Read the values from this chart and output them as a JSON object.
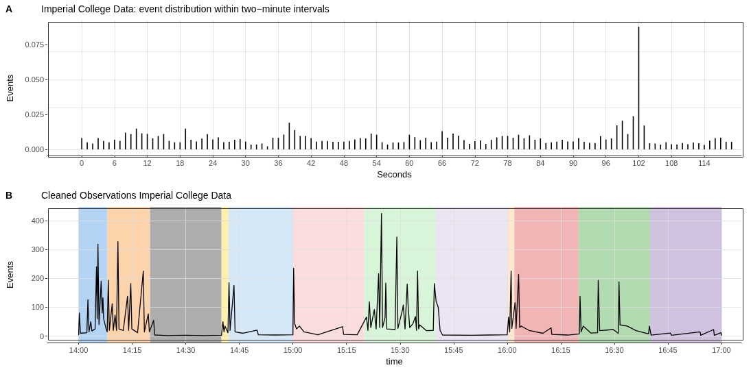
{
  "chart_data": [
    {
      "type": "bar",
      "title": "Imperial College Data: event distribution within two−minute intervals",
      "annotations": [
        "A"
      ],
      "xlabel": "Seconds",
      "ylabel": "Events",
      "grid": true,
      "color": "#000000",
      "x": [
        0,
        1,
        2,
        3,
        4,
        5,
        6,
        7,
        8,
        9,
        10,
        11,
        12,
        13,
        14,
        15,
        16,
        17,
        18,
        19,
        20,
        21,
        22,
        23,
        24,
        25,
        26,
        27,
        28,
        29,
        30,
        31,
        32,
        33,
        34,
        35,
        36,
        37,
        38,
        39,
        40,
        41,
        42,
        43,
        44,
        45,
        46,
        47,
        48,
        49,
        50,
        51,
        52,
        53,
        54,
        55,
        56,
        57,
        58,
        59,
        60,
        61,
        62,
        63,
        64,
        65,
        66,
        67,
        68,
        69,
        70,
        71,
        72,
        73,
        74,
        75,
        76,
        77,
        78,
        79,
        80,
        81,
        82,
        83,
        84,
        85,
        86,
        87,
        88,
        89,
        90,
        91,
        92,
        93,
        94,
        95,
        96,
        97,
        98,
        99,
        100,
        101,
        102,
        103,
        104,
        105,
        106,
        107,
        108,
        109,
        110,
        111,
        112,
        113,
        114,
        115,
        116,
        117,
        118,
        119
      ],
      "values": [
        0.0081,
        0.0051,
        0.0042,
        0.0081,
        0.0061,
        0.0051,
        0.0069,
        0.0061,
        0.012,
        0.011,
        0.0149,
        0.0115,
        0.0111,
        0.0079,
        0.0096,
        0.011,
        0.0061,
        0.0051,
        0.0051,
        0.0149,
        0.0069,
        0.0057,
        0.0078,
        0.011,
        0.0071,
        0.0086,
        0.0052,
        0.0054,
        0.0069,
        0.0074,
        0.0056,
        0.0034,
        0.0035,
        0.0042,
        0.0022,
        0.0083,
        0.0083,
        0.0106,
        0.0191,
        0.0139,
        0.0096,
        0.0096,
        0.0081,
        0.0056,
        0.0061,
        0.0061,
        0.0054,
        0.0054,
        0.0056,
        0.0061,
        0.0071,
        0.0081,
        0.0079,
        0.0113,
        0.0105,
        0.0051,
        0.0034,
        0.0049,
        0.0049,
        0.0052,
        0.0105,
        0.0088,
        0.0066,
        0.0083,
        0.0052,
        0.0056,
        0.013,
        0.0084,
        0.0113,
        0.0098,
        0.0066,
        0.0039,
        0.0059,
        0.0064,
        0.0039,
        0.0068,
        0.0086,
        0.0096,
        0.0096,
        0.0083,
        0.0105,
        0.0079,
        0.0101,
        0.0069,
        0.0079,
        0.0046,
        0.0051,
        0.0056,
        0.0069,
        0.0057,
        0.0057,
        0.0081,
        0.0054,
        0.0047,
        0.0046,
        0.0095,
        0.0071,
        0.0079,
        0.0172,
        0.0206,
        0.011,
        0.0238,
        0.088,
        0.0171,
        0.0044,
        0.0042,
        0.0034,
        0.0051,
        0.0037,
        0.0035,
        0.0046,
        0.0037,
        0.0049,
        0.0044,
        0.0032,
        0.0063,
        0.0081,
        0.0084,
        0.0054,
        0.0054
      ],
      "xlim": [
        -6.3,
        120.8
      ],
      "xticks": [
        0,
        6,
        12,
        18,
        24,
        30,
        36,
        42,
        48,
        54,
        60,
        66,
        72,
        78,
        84,
        90,
        96,
        102,
        108,
        114
      ],
      "ylim": [
        -0.0044,
        0.0924
      ],
      "yticks": [
        {
          "value": 0,
          "label": "0.000"
        },
        {
          "value": 0.025,
          "label": "0.025"
        },
        {
          "value": 0.05,
          "label": "0.050"
        },
        {
          "value": 0.075,
          "label": "0.075"
        }
      ]
    },
    {
      "type": "line",
      "title": "Cleaned Observations Imperial College Data",
      "annotations": [
        "B"
      ],
      "xlabel": "time",
      "ylabel": "Events",
      "grid": true,
      "color": "#000000",
      "x": [
        14,
        14.0033,
        14.0083,
        14.0383,
        14.0433,
        14.0483,
        14.0567,
        14.0617,
        14.0767,
        14.0833,
        14.0867,
        14.09,
        14.095,
        14.105,
        14.11,
        14.1133,
        14.1167,
        14.1283,
        14.1333,
        14.1383,
        14.1433,
        14.1567,
        14.1617,
        14.17,
        14.1767,
        14.1833,
        14.1883,
        14.2083,
        14.2283,
        14.2333,
        14.2433,
        14.2483,
        14.275,
        14.3017,
        14.3067,
        14.325,
        14.33,
        14.35,
        14.355,
        14.4167,
        14.5,
        14.5833,
        14.6667,
        14.6733,
        14.6783,
        14.6833,
        14.6967,
        14.7017,
        14.7067,
        14.725,
        14.73,
        14.7667,
        14.8333,
        14.8383,
        14.9167,
        15,
        15.0033,
        15.0083,
        15.0167,
        15.03,
        15.0517,
        15.1167,
        15.2317,
        15.2367,
        15.3,
        15.3433,
        15.35,
        15.3567,
        15.3633,
        15.38,
        15.3883,
        15.4,
        15.405,
        15.4133,
        15.4183,
        15.43,
        15.4333,
        15.4383,
        15.4767,
        15.485,
        15.49,
        15.5117,
        15.515,
        15.5233,
        15.5333,
        15.5383,
        15.545,
        15.56,
        15.5717,
        15.5767,
        15.5817,
        15.5867,
        15.5917,
        15.6233,
        15.655,
        15.66,
        15.6683,
        15.6783,
        15.6867,
        15.6983,
        15.8333,
        15.9167,
        16,
        16.0067,
        16.0117,
        16.0183,
        16.0217,
        16.0367,
        16.0417,
        16.0533,
        16.0583,
        16.065,
        16.1017,
        16.1667,
        16.205,
        16.2083,
        16.2833,
        16.3367,
        16.34,
        16.345,
        16.355,
        16.39,
        16.4217,
        16.425,
        16.4317,
        16.495,
        16.5183,
        16.5217,
        16.5267,
        16.56,
        16.6017,
        16.66,
        16.6633,
        16.6717,
        16.7617,
        16.7667,
        16.9,
        16.9033,
        16.9633,
        16.9667,
        16.9983,
        17
      ],
      "values": [
        5,
        80,
        10,
        12,
        126,
        15,
        50,
        18,
        25,
        240,
        60,
        318,
        40,
        190,
        80,
        133,
        60,
        25,
        15,
        194,
        20,
        112,
        20,
        73,
        20,
        327,
        25,
        20,
        138,
        20,
        182,
        25,
        12,
        225,
        15,
        77,
        15,
        55,
        4,
        2,
        3,
        2,
        3,
        50,
        15,
        35,
        12,
        185,
        20,
        176,
        15,
        10,
        21,
        5,
        4,
        5,
        235,
        43,
        25,
        35,
        15,
        5,
        33,
        6,
        5,
        66,
        20,
        119,
        30,
        92,
        25,
        216,
        30,
        424,
        30,
        64,
        184,
        25,
        23,
        343,
        27,
        92,
        108,
        25,
        180,
        96,
        30,
        43,
        68,
        20,
        225,
        25,
        39,
        19,
        20,
        182,
        120,
        100,
        20,
        4,
        3,
        4,
        5,
        66,
        15,
        225,
        27,
        116,
        27,
        214,
        30,
        35,
        20,
        10,
        29,
        6,
        4,
        8,
        138,
        15,
        35,
        11,
        12,
        193,
        19,
        23,
        10,
        188,
        39,
        35,
        19,
        8,
        35,
        4,
        11,
        3,
        15,
        3,
        23,
        3,
        12,
        3
      ],
      "xlim": [
        13.854,
        17.093
      ],
      "xticks": [
        {
          "value": 14,
          "label": "14:00"
        },
        {
          "value": 14.25,
          "label": "14:15"
        },
        {
          "value": 14.5,
          "label": "14:30"
        },
        {
          "value": 14.75,
          "label": "14:45"
        },
        {
          "value": 15,
          "label": "15:00"
        },
        {
          "value": 15.25,
          "label": "15:15"
        },
        {
          "value": 15.5,
          "label": "15:30"
        },
        {
          "value": 15.75,
          "label": "15:45"
        },
        {
          "value": 16,
          "label": "16:00"
        },
        {
          "value": 16.25,
          "label": "16:15"
        },
        {
          "value": 16.5,
          "label": "16:30"
        },
        {
          "value": 16.75,
          "label": "16:45"
        },
        {
          "value": 17,
          "label": "17:00"
        }
      ],
      "ylim": [
        -22,
        447
      ],
      "yticks": [
        0,
        100,
        200,
        300,
        400
      ],
      "bands": [
        {
          "axis": "x",
          "from": 14,
          "to": 14.1333,
          "color": "#b3d4f5"
        },
        {
          "axis": "x",
          "from": 14.1333,
          "to": 14.3333,
          "color": "#fdd3ac"
        },
        {
          "axis": "x",
          "from": 14.3333,
          "to": 14.6667,
          "color": "#adadad"
        },
        {
          "axis": "x",
          "from": 14.6667,
          "to": 14.7,
          "color": "#fff0ae"
        },
        {
          "axis": "x",
          "from": 14.7,
          "to": 15,
          "color": "#d5e8f7"
        },
        {
          "axis": "x",
          "from": 15,
          "to": 15.3333,
          "color": "#fbdde0"
        },
        {
          "axis": "x",
          "from": 15.3333,
          "to": 15.6667,
          "color": "#d9f5d9"
        },
        {
          "axis": "x",
          "from": 15.6667,
          "to": 16,
          "color": "#ebe4f2"
        },
        {
          "axis": "x",
          "from": 16,
          "to": 16.0333,
          "color": "#fde9cf"
        },
        {
          "axis": "x",
          "from": 16.0333,
          "to": 16.3333,
          "color": "#f2b5b5"
        },
        {
          "axis": "x",
          "from": 16.3333,
          "to": 16.6667,
          "color": "#b2dbb2"
        },
        {
          "axis": "x",
          "from": 16.6667,
          "to": 17,
          "color": "#d0c1df"
        }
      ]
    }
  ]
}
